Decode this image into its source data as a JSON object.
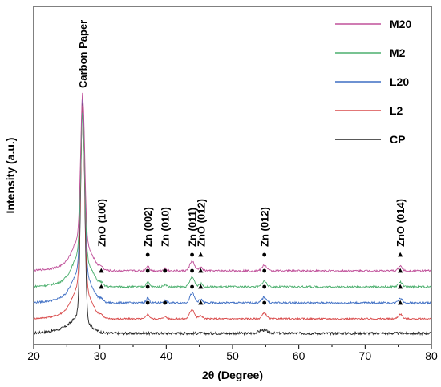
{
  "chart_data": {
    "type": "line",
    "title": "",
    "xlabel": "2θ (Degree)",
    "ylabel": "Intensity (a.u.)",
    "xlim": [
      20,
      80
    ],
    "xticks": [
      "20",
      "30",
      "40",
      "50",
      "60",
      "70",
      "80"
    ],
    "y_ticks_shown": false,
    "grid": false,
    "legend_position": "top-right",
    "series": [
      {
        "name": "M20",
        "color": "#c0509a",
        "offset": 78,
        "peak_height": 176,
        "noise": 1.2
      },
      {
        "name": "M2",
        "color": "#4caf6e",
        "offset": 58,
        "peak_height": 170,
        "noise": 1.2
      },
      {
        "name": "L20",
        "color": "#3f6fc4",
        "offset": 38,
        "peak_height": 212,
        "noise": 1.2
      },
      {
        "name": "L2",
        "color": "#d94a4a",
        "offset": 18,
        "peak_height": 220,
        "noise": 1.0
      },
      {
        "name": "CP",
        "color": "#222222",
        "offset": 0,
        "peak_height": 268,
        "noise": 1.6
      }
    ],
    "peaks_2theta": {
      "Carbon Paper": 27.4,
      "ZnO (100)": 30.2,
      "Zn (002)": 37.2,
      "Zn (010)": 39.8,
      "Zn (011)": 43.9,
      "ZnO (012)": 45.2,
      "Zn (012)": 54.8,
      "ZnO (014)": 75.3
    },
    "annotations": [
      {
        "text": "Carbon Paper",
        "x": 27.4
      },
      {
        "text": "ZnO (100)",
        "x": 30.2
      },
      {
        "text": "Zn (002)",
        "x": 37.2
      },
      {
        "text": "Zn (010)",
        "x": 39.8
      },
      {
        "text": "Zn (011)",
        "x": 43.9
      },
      {
        "text": "ZnO (012)",
        "x": 45.2
      },
      {
        "text": "Zn (012)",
        "x": 54.8
      },
      {
        "text": "ZnO (014)",
        "x": 75.3
      }
    ],
    "markers": [
      {
        "symbol": "●",
        "phase": "Zn",
        "x": 37.2,
        "series": [
          "M20",
          "M2",
          "L20",
          "L2"
        ]
      },
      {
        "symbol": "●",
        "phase": "Zn",
        "x": 39.8,
        "series": [
          "M2",
          "L2"
        ]
      },
      {
        "symbol": "●",
        "phase": "Zn",
        "x": 43.9,
        "series": [
          "M20",
          "M2",
          "L20"
        ]
      },
      {
        "symbol": "●",
        "phase": "Zn",
        "x": 54.8,
        "series": [
          "M20",
          "M2",
          "L20",
          "L2"
        ]
      },
      {
        "symbol": "▲",
        "phase": "ZnO",
        "x": 30.2,
        "series": [
          "M2",
          "L20"
        ]
      },
      {
        "symbol": "▲",
        "phase": "ZnO",
        "x": 45.2,
        "series": [
          "M20",
          "M2",
          "L20",
          "L2"
        ]
      },
      {
        "symbol": "▲",
        "phase": "ZnO",
        "x": 75.3,
        "series": [
          "M20",
          "M2",
          "L20",
          "L2"
        ]
      }
    ]
  }
}
